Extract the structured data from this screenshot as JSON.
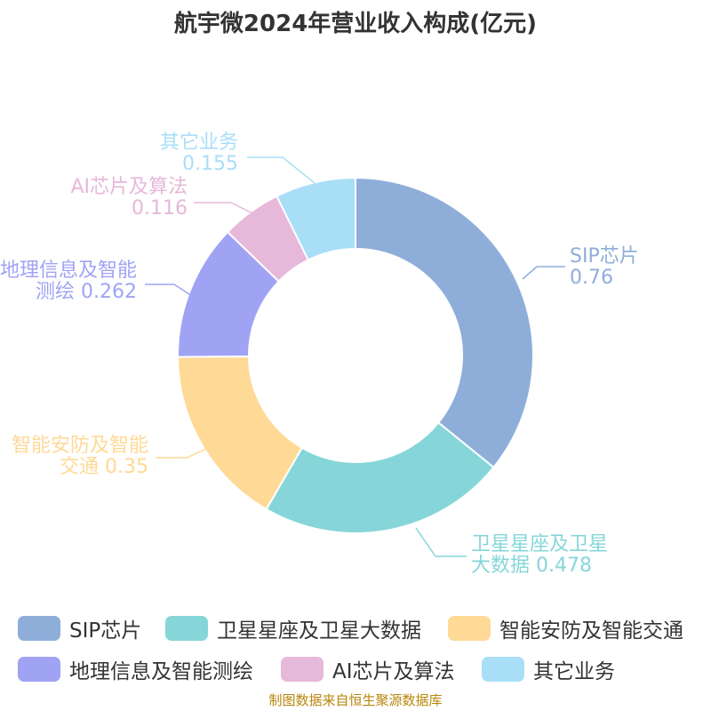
{
  "chart_data": {
    "type": "pie",
    "title": "航宇微2024年营业收入构成(亿元)",
    "donut": true,
    "slices": [
      {
        "name": "SIP芯片",
        "value": 0.76,
        "color": "#8eaed9",
        "label_lines": [
          "SIP芯片",
          "0.76"
        ],
        "label_text": "SIP芯片 0.76"
      },
      {
        "name": "卫星星座及卫星大数据",
        "value": 0.478,
        "color": "#86d6d9",
        "label_lines": [
          "卫星星座及卫星",
          "大数据 0.478"
        ],
        "label_text": "卫星星座及卫星大数据 0.478"
      },
      {
        "name": "智能安防及智能交通",
        "value": 0.35,
        "color": "#ffd996",
        "label_lines": [
          "智能安防及智能",
          "交通 0.35"
        ],
        "label_text": "智能安防及智能交通 0.35"
      },
      {
        "name": "地理信息及智能测绘",
        "value": 0.262,
        "color": "#a0a3f4",
        "label_lines": [
          "地理信息及智能",
          "测绘 0.262"
        ],
        "label_text": "地理信息及智能测绘 0.262"
      },
      {
        "name": "AI芯片及算法",
        "value": 0.116,
        "color": "#e6b8d9",
        "label_lines": [
          "AI芯片及算法",
          "0.116"
        ],
        "label_text": "AI芯片及算法 0.116"
      },
      {
        "name": "其它业务",
        "value": 0.155,
        "color": "#a9def7",
        "label_lines": [
          "其它业务",
          "0.155"
        ],
        "label_text": "其它业务 0.155"
      }
    ],
    "legend_position": "bottom"
  },
  "source": "制图数据来自恒生聚源数据库"
}
